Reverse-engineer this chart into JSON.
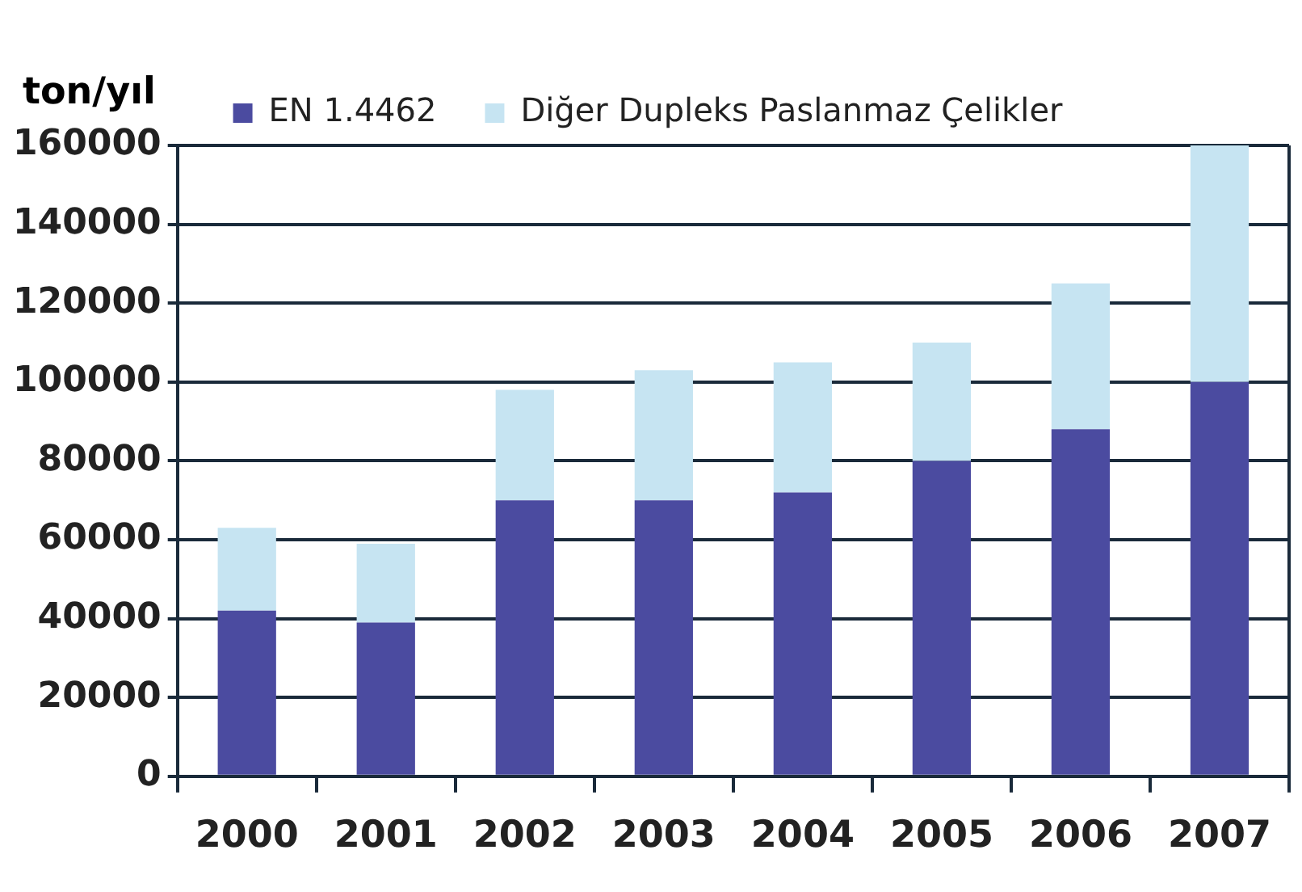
{
  "chart_data": {
    "type": "bar",
    "stacked": true,
    "ylabel": "ton/yıl",
    "categories": [
      "2000",
      "2001",
      "2002",
      "2003",
      "2004",
      "2005",
      "2006",
      "2007"
    ],
    "series": [
      {
        "name": "EN 1.4462",
        "color": "#4b4ba0",
        "values": [
          42000,
          39000,
          70000,
          70000,
          72000,
          80000,
          88000,
          100000
        ]
      },
      {
        "name": "Diğer Dupleks Paslanmaz Çelikler",
        "color": "#c6e4f2",
        "values": [
          21000,
          20000,
          28000,
          33000,
          33000,
          30000,
          37000,
          60000
        ]
      }
    ],
    "ylim": [
      0,
      160000
    ],
    "yticks": [
      0,
      20000,
      40000,
      60000,
      80000,
      100000,
      120000,
      140000,
      160000
    ],
    "grid": "y",
    "legend": "top"
  }
}
